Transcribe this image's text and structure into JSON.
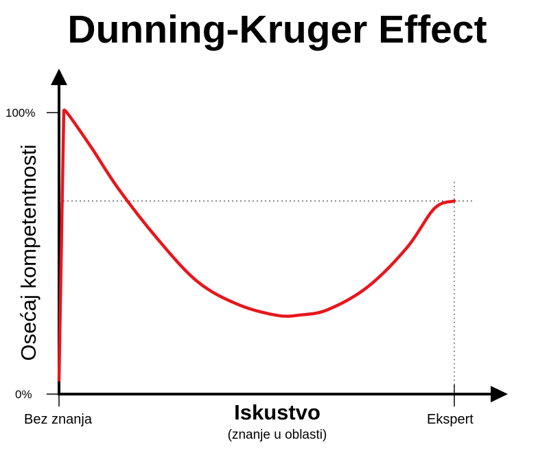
{
  "chart_data": {
    "type": "line",
    "title": "Dunning-Kruger Effect",
    "xlabel": "Iskustvo",
    "xlabel_sub": "(znanje u oblasti)",
    "ylabel": "Osećaj kompetentnosti",
    "x_start_label": "Bez znanja",
    "x_end_label": "Ekspert",
    "y_tick_labels": [
      "0%",
      "100%"
    ],
    "ylim": [
      0,
      100
    ],
    "xlim": [
      0,
      100
    ],
    "grid": false,
    "series_color": "#e8161b",
    "series": [
      {
        "values": [
          [
            0,
            5
          ],
          [
            1.2,
            100
          ],
          [
            2,
            100
          ],
          [
            8,
            88
          ],
          [
            15,
            73
          ],
          [
            25,
            55
          ],
          [
            35,
            40
          ],
          [
            45,
            32
          ],
          [
            55,
            28
          ],
          [
            61,
            28.1
          ],
          [
            68,
            30
          ],
          [
            78,
            38
          ],
          [
            88,
            52
          ],
          [
            95,
            66
          ],
          [
            100,
            68.6
          ]
        ]
      }
    ],
    "reference_y": 68.6,
    "reference_x": 100
  }
}
